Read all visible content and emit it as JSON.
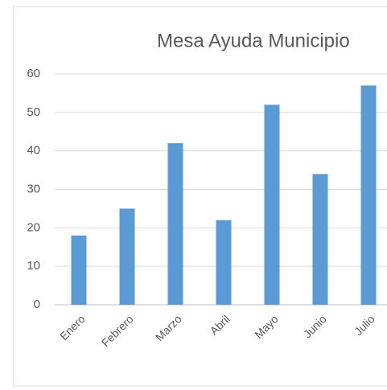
{
  "chart_data": {
    "type": "bar",
    "title": "Mesa Ayuda Municipio",
    "categories": [
      "Enero",
      "Febrero",
      "Marzo",
      "Abril",
      "Mayo",
      "Junio",
      "Julio"
    ],
    "values": [
      18,
      25,
      42,
      22,
      52,
      34,
      57
    ],
    "color": "#5b9bd5",
    "ylim": [
      0,
      60
    ],
    "yticks": [
      0,
      10,
      20,
      30,
      40,
      50,
      60
    ],
    "grid": true
  }
}
